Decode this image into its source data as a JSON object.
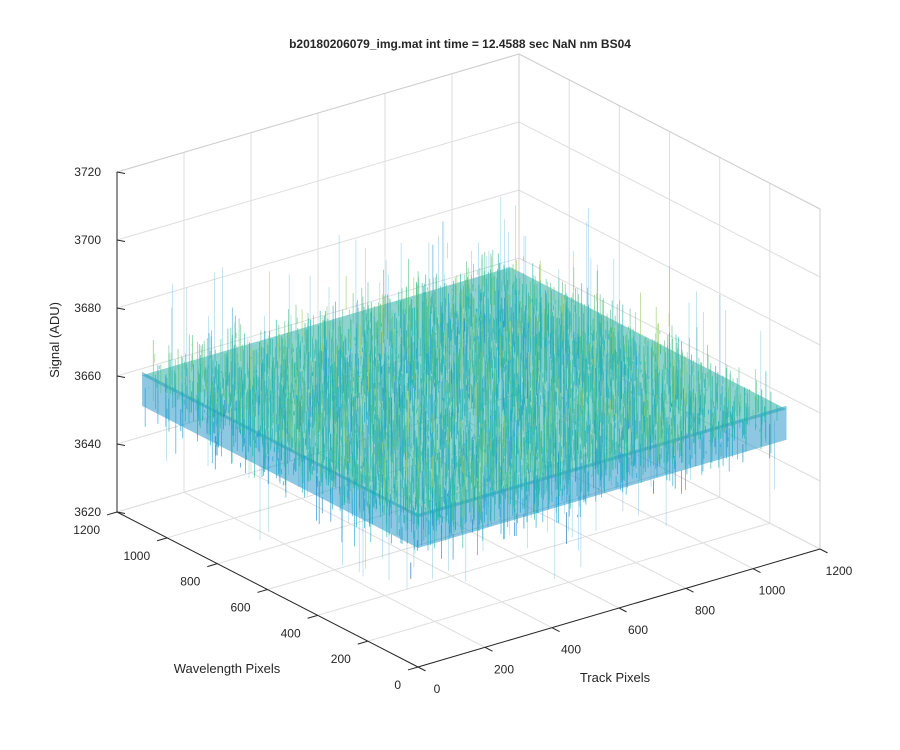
{
  "chart_data": {
    "type": "surface",
    "title": "b20180206079_img.mat int time = 12.4588 sec  NaN nm BS04",
    "xlabel": "Track Pixels",
    "ylabel": "Wavelength Pixels",
    "zlabel": "Signal (ADU)",
    "xlim": [
      0,
      1200
    ],
    "ylim": [
      0,
      1200
    ],
    "zlim": [
      3620,
      3720
    ],
    "x_ticks": [
      0,
      200,
      400,
      600,
      800,
      1000,
      1200
    ],
    "y_ticks": [
      0,
      200,
      400,
      600,
      800,
      1000,
      1200
    ],
    "z_ticks": [
      3620,
      3640,
      3660,
      3680,
      3700,
      3720
    ],
    "x_tick_labels": [
      "0",
      "200",
      "400",
      "600",
      "800",
      "1000",
      "1200"
    ],
    "y_tick_labels": [
      "0",
      "200",
      "400",
      "600",
      "800",
      "1000",
      "1200"
    ],
    "z_tick_labels": [
      "3620",
      "3640",
      "3660",
      "3680",
      "3700",
      "3720"
    ],
    "data_extent": {
      "x": [
        0,
        1100
      ],
      "y": [
        0,
        1100
      ]
    },
    "signal_mean": 3661,
    "signal_range": [
      3630,
      3700
    ],
    "grid": true,
    "colormap": [
      "#0d5fa8",
      "#1583c9",
      "#16a3c9",
      "#22b5a8",
      "#5cc28a",
      "#9ccc6a",
      "#e3c25b"
    ]
  }
}
